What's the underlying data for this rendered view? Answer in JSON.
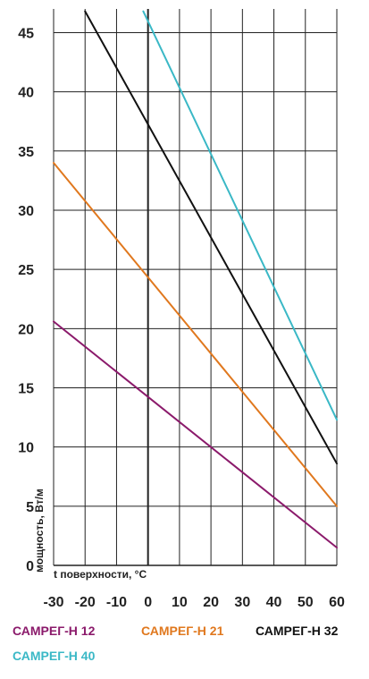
{
  "chart_data": {
    "type": "line",
    "title": "",
    "xlabel": "t поверхности, °C",
    "ylabel": "мощность, Вт/м",
    "xlim": [
      -30,
      60
    ],
    "ylim": [
      0,
      47
    ],
    "xticks": [
      -30,
      -20,
      -10,
      0,
      10,
      20,
      30,
      40,
      50,
      60
    ],
    "yticks": [
      0,
      5,
      10,
      15,
      20,
      25,
      30,
      35,
      40,
      45
    ],
    "grid": true,
    "legend_position": "bottom",
    "series": [
      {
        "name": "САМРЕГ-Н 12",
        "color": "#8b1a6b",
        "x": [
          -30,
          60
        ],
        "y": [
          20.6,
          1.5
        ]
      },
      {
        "name": "САМРЕГ-Н 21",
        "color": "#e0781e",
        "x": [
          -30,
          60
        ],
        "y": [
          34.0,
          5.0
        ]
      },
      {
        "name": "САМРЕГ-Н 32",
        "color": "#111111",
        "x": [
          -20,
          60
        ],
        "y": [
          46.8,
          8.6
        ]
      },
      {
        "name": "САМРЕГ-Н 40",
        "color": "#3ab8c6",
        "x": [
          -1.5,
          60
        ],
        "y": [
          46.8,
          12.3
        ]
      }
    ]
  }
}
